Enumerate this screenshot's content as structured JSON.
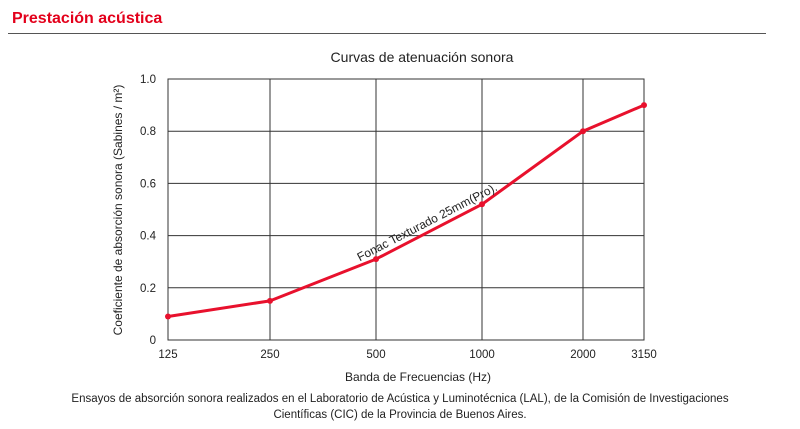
{
  "header": {
    "title": "Prestación acústica"
  },
  "colors": {
    "accent": "#e3001b",
    "series": "#e8112d",
    "grid": "#333333"
  },
  "chart_data": {
    "type": "line",
    "title": "Curvas de atenuación sonora",
    "xlabel": "Banda de Frecuencias (Hz)",
    "ylabel": "Coeficiente de absorción sonora (Sabines / m²)",
    "categories": [
      "125",
      "250",
      "500",
      "1000",
      "2000",
      "3150"
    ],
    "series": [
      {
        "name": "Fonac Texturado 25mm(Pro).",
        "values": [
          0.09,
          0.15,
          0.31,
          0.52,
          0.8,
          0.9
        ]
      }
    ],
    "ylim": [
      0,
      1.0
    ],
    "yticks": [
      0,
      0.2,
      0.4,
      0.6,
      0.8,
      1.0
    ],
    "ytick_labels": [
      "0",
      "0.2",
      "0.4",
      "0.6",
      "0.8",
      "1.0"
    ],
    "grid": true,
    "legend": "none"
  },
  "caption": "Ensayos de absorción sonora realizados en el Laboratorio de Acústica y Luminotécnica (LAL), de la Comisión de Investigaciones Científicas (CIC) de la Provincia de Buenos Aires."
}
